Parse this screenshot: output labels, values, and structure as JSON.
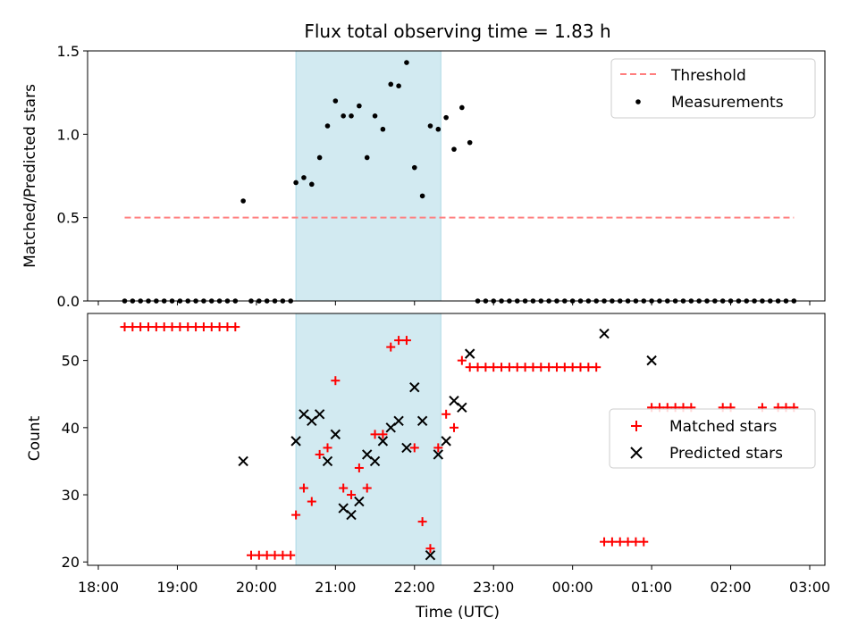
{
  "chart_data": [
    {
      "type": "scatter",
      "title": "Flux total observing time = 1.83 h",
      "xlabel": "",
      "ylabel": "Matched/Predicted stars",
      "xlim": [
        "18:00",
        "03:00"
      ],
      "ylim": [
        0,
        1.5
      ],
      "yticks": [
        "0.0",
        "0.5",
        "1.0",
        "1.5"
      ],
      "legend_position": "top-right",
      "shaded_interval": [
        "20:30",
        "22:20"
      ],
      "shaded_color": "#add8e6",
      "threshold": {
        "name": "Threshold",
        "y": 0.5,
        "x_range": [
          "18:20",
          "02:48"
        ],
        "color": "#ff7f7f",
        "style": "dashed"
      },
      "series": [
        {
          "name": "Measurements",
          "color": "#000000",
          "marker": "dot",
          "points": [
            [
              "18:20",
              0
            ],
            [
              "18:26",
              0
            ],
            [
              "18:32",
              0
            ],
            [
              "18:38",
              0
            ],
            [
              "18:44",
              0
            ],
            [
              "18:50",
              0
            ],
            [
              "18:56",
              0
            ],
            [
              "19:02",
              0
            ],
            [
              "19:08",
              0
            ],
            [
              "19:14",
              0
            ],
            [
              "19:20",
              0
            ],
            [
              "19:26",
              0
            ],
            [
              "19:32",
              0
            ],
            [
              "19:38",
              0
            ],
            [
              "19:44",
              0
            ],
            [
              "19:50",
              0.6
            ],
            [
              "19:56",
              0
            ],
            [
              "20:02",
              0
            ],
            [
              "20:08",
              0
            ],
            [
              "20:14",
              0
            ],
            [
              "20:20",
              0
            ],
            [
              "20:26",
              0
            ],
            [
              "20:30",
              0.71
            ],
            [
              "20:36",
              0.74
            ],
            [
              "20:42",
              0.7
            ],
            [
              "20:48",
              0.86
            ],
            [
              "20:54",
              1.05
            ],
            [
              "21:00",
              1.2
            ],
            [
              "21:06",
              1.11
            ],
            [
              "21:12",
              1.11
            ],
            [
              "21:18",
              1.17
            ],
            [
              "21:24",
              0.86
            ],
            [
              "21:30",
              1.11
            ],
            [
              "21:36",
              1.03
            ],
            [
              "21:42",
              1.3
            ],
            [
              "21:48",
              1.29
            ],
            [
              "21:54",
              1.43
            ],
            [
              "22:00",
              0.8
            ],
            [
              "22:06",
              0.63
            ],
            [
              "22:12",
              1.05
            ],
            [
              "22:18",
              1.03
            ],
            [
              "22:24",
              1.1
            ],
            [
              "22:30",
              0.91
            ],
            [
              "22:36",
              1.16
            ],
            [
              "22:42",
              0.95
            ],
            [
              "22:48",
              0
            ],
            [
              "22:54",
              0
            ],
            [
              "23:00",
              0
            ],
            [
              "23:06",
              0
            ],
            [
              "23:12",
              0
            ],
            [
              "23:18",
              0
            ],
            [
              "23:24",
              0
            ],
            [
              "23:30",
              0
            ],
            [
              "23:36",
              0
            ],
            [
              "23:42",
              0
            ],
            [
              "23:48",
              0
            ],
            [
              "23:54",
              0
            ],
            [
              "00:00",
              0
            ],
            [
              "00:06",
              0
            ],
            [
              "00:12",
              0
            ],
            [
              "00:18",
              0
            ],
            [
              "00:24",
              0
            ],
            [
              "00:30",
              0
            ],
            [
              "00:36",
              0
            ],
            [
              "00:42",
              0
            ],
            [
              "00:48",
              0
            ],
            [
              "00:54",
              0
            ],
            [
              "01:00",
              0
            ],
            [
              "01:06",
              0
            ],
            [
              "01:12",
              0
            ],
            [
              "01:18",
              0
            ],
            [
              "01:24",
              0
            ],
            [
              "01:30",
              0
            ],
            [
              "01:36",
              0
            ],
            [
              "01:42",
              0
            ],
            [
              "01:48",
              0
            ],
            [
              "01:54",
              0
            ],
            [
              "02:00",
              0
            ],
            [
              "02:06",
              0
            ],
            [
              "02:12",
              0
            ],
            [
              "02:18",
              0
            ],
            [
              "02:24",
              0
            ],
            [
              "02:30",
              0
            ],
            [
              "02:36",
              0
            ],
            [
              "02:42",
              0
            ],
            [
              "02:48",
              0
            ]
          ]
        }
      ]
    },
    {
      "type": "scatter",
      "title": "",
      "xlabel": "Time (UTC)",
      "ylabel": "Count",
      "xlim": [
        "18:00",
        "03:00"
      ],
      "ylim": [
        19.5,
        57
      ],
      "yticks": [
        "20",
        "30",
        "40",
        "50"
      ],
      "xticks": [
        "18:00",
        "19:00",
        "20:00",
        "21:00",
        "22:00",
        "23:00",
        "00:00",
        "01:00",
        "02:00",
        "03:00"
      ],
      "legend_position": "center-right",
      "shaded_interval": [
        "20:30",
        "22:20"
      ],
      "series": [
        {
          "name": "Matched stars",
          "color": "#ff0000",
          "marker": "plus",
          "points": [
            [
              "18:20",
              55
            ],
            [
              "18:26",
              55
            ],
            [
              "18:32",
              55
            ],
            [
              "18:38",
              55
            ],
            [
              "18:44",
              55
            ],
            [
              "18:50",
              55
            ],
            [
              "18:56",
              55
            ],
            [
              "19:02",
              55
            ],
            [
              "19:08",
              55
            ],
            [
              "19:14",
              55
            ],
            [
              "19:20",
              55
            ],
            [
              "19:26",
              55
            ],
            [
              "19:32",
              55
            ],
            [
              "19:38",
              55
            ],
            [
              "19:44",
              55
            ],
            [
              "19:56",
              21
            ],
            [
              "20:02",
              21
            ],
            [
              "20:08",
              21
            ],
            [
              "20:14",
              21
            ],
            [
              "20:20",
              21
            ],
            [
              "20:26",
              21
            ],
            [
              "20:30",
              27
            ],
            [
              "20:36",
              31
            ],
            [
              "20:42",
              29
            ],
            [
              "20:48",
              36
            ],
            [
              "20:54",
              37
            ],
            [
              "21:00",
              47
            ],
            [
              "21:06",
              31
            ],
            [
              "21:12",
              30
            ],
            [
              "21:18",
              34
            ],
            [
              "21:24",
              31
            ],
            [
              "21:30",
              39
            ],
            [
              "21:36",
              39
            ],
            [
              "21:42",
              52
            ],
            [
              "21:48",
              53
            ],
            [
              "21:54",
              53
            ],
            [
              "22:00",
              37
            ],
            [
              "22:06",
              26
            ],
            [
              "22:12",
              22
            ],
            [
              "22:18",
              37
            ],
            [
              "22:24",
              42
            ],
            [
              "22:30",
              40
            ],
            [
              "22:36",
              50
            ],
            [
              "22:42",
              49
            ],
            [
              "22:48",
              49
            ],
            [
              "22:54",
              49
            ],
            [
              "23:00",
              49
            ],
            [
              "23:06",
              49
            ],
            [
              "23:12",
              49
            ],
            [
              "23:18",
              49
            ],
            [
              "23:24",
              49
            ],
            [
              "23:30",
              49
            ],
            [
              "23:36",
              49
            ],
            [
              "23:42",
              49
            ],
            [
              "23:48",
              49
            ],
            [
              "23:54",
              49
            ],
            [
              "00:00",
              49
            ],
            [
              "00:06",
              49
            ],
            [
              "00:12",
              49
            ],
            [
              "00:18",
              49
            ],
            [
              "00:24",
              23
            ],
            [
              "00:30",
              23
            ],
            [
              "00:36",
              23
            ],
            [
              "00:42",
              23
            ],
            [
              "00:48",
              23
            ],
            [
              "00:54",
              23
            ],
            [
              "01:00",
              43
            ],
            [
              "01:06",
              43
            ],
            [
              "01:12",
              43
            ],
            [
              "01:18",
              43
            ],
            [
              "01:24",
              43
            ],
            [
              "01:30",
              43
            ],
            [
              "01:54",
              43
            ],
            [
              "02:00",
              43
            ],
            [
              "02:24",
              43
            ],
            [
              "02:36",
              43
            ],
            [
              "02:42",
              43
            ],
            [
              "02:48",
              43
            ]
          ]
        },
        {
          "name": "Predicted stars",
          "color": "#000000",
          "marker": "x",
          "points": [
            [
              "19:50",
              35
            ],
            [
              "20:30",
              38
            ],
            [
              "20:36",
              42
            ],
            [
              "20:42",
              41
            ],
            [
              "20:48",
              42
            ],
            [
              "20:54",
              35
            ],
            [
              "21:00",
              39
            ],
            [
              "21:06",
              28
            ],
            [
              "21:12",
              27
            ],
            [
              "21:18",
              29
            ],
            [
              "21:24",
              36
            ],
            [
              "21:30",
              35
            ],
            [
              "21:36",
              38
            ],
            [
              "21:42",
              40
            ],
            [
              "21:48",
              41
            ],
            [
              "21:54",
              37
            ],
            [
              "22:00",
              46
            ],
            [
              "22:06",
              41
            ],
            [
              "22:12",
              21
            ],
            [
              "22:18",
              36
            ],
            [
              "22:24",
              38
            ],
            [
              "22:30",
              44
            ],
            [
              "22:36",
              43
            ],
            [
              "22:42",
              51
            ],
            [
              "00:24",
              54
            ],
            [
              "01:00",
              50
            ]
          ]
        }
      ]
    }
  ]
}
